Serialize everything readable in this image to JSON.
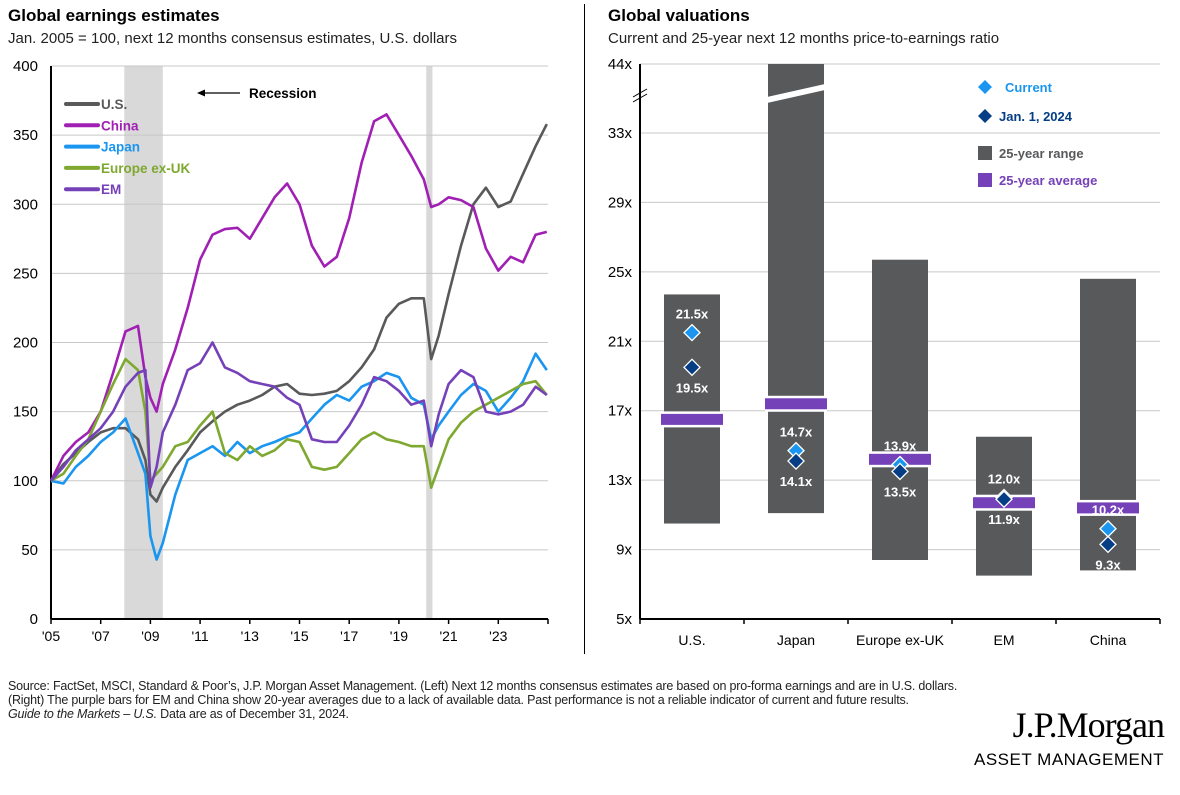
{
  "left": {
    "title": "Global earnings estimates",
    "subtitle": "Jan. 2005 = 100, next 12 months consensus estimates, U.S. dollars",
    "recession_label": "Recession"
  },
  "right": {
    "title": "Global valuations",
    "subtitle": "Current and 25-year next 12 months price-to-earnings ratio"
  },
  "footer": {
    "source": "Source: FactSet, MSCI, Standard & Poor’s, J.P. Morgan Asset Management. (Left) Next 12 months consensus estimates are based on pro-forma earnings and are in U.S. dollars. (Right) The purple bars for EM and China show 20-year averages due to a lack of available data. Past performance is not a reliable indicator of current and future results.",
    "guide_italic": "Guide to the Markets – U.S.",
    "guide_rest": " Data are as of December 31, 2024."
  },
  "logo": {
    "name": "J.P.Morgan",
    "tagline": "ASSET MANAGEMENT"
  },
  "chart_data": [
    {
      "type": "line",
      "title": "Global earnings estimates",
      "subtitle": "Jan. 2005 = 100, next 12 months consensus estimates, U.S. dollars",
      "xlabel": "",
      "ylabel": "",
      "ylim": [
        0,
        400
      ],
      "xlim": [
        2005,
        2025
      ],
      "yticks": [
        0,
        50,
        100,
        150,
        200,
        250,
        300,
        350,
        400
      ],
      "xtick_labels": [
        "'05",
        "'07",
        "'09",
        "'11",
        "'13",
        "'15",
        "'17",
        "'19",
        "'21",
        "'23"
      ],
      "xtick_years": [
        2005,
        2007,
        2009,
        2011,
        2013,
        2015,
        2017,
        2019,
        2021,
        2023
      ],
      "grid": true,
      "legend_position": "top-left",
      "recessions": [
        [
          2007.95,
          2009.5
        ],
        [
          2020.1,
          2020.35
        ]
      ],
      "x": [
        2005.0,
        2005.5,
        2006.0,
        2006.5,
        2007.0,
        2007.5,
        2008.0,
        2008.5,
        2008.8,
        2009.0,
        2009.25,
        2009.5,
        2010.0,
        2010.5,
        2011.0,
        2011.5,
        2012.0,
        2012.5,
        2013.0,
        2013.5,
        2014.0,
        2014.5,
        2015.0,
        2015.5,
        2016.0,
        2016.5,
        2017.0,
        2017.5,
        2018.0,
        2018.5,
        2019.0,
        2019.5,
        2020.0,
        2020.3,
        2020.6,
        2021.0,
        2021.5,
        2022.0,
        2022.5,
        2023.0,
        2023.5,
        2024.0,
        2024.5,
        2024.95
      ],
      "series": [
        {
          "name": "U.S.",
          "color": "#58595b",
          "values": [
            100,
            112,
            120,
            128,
            135,
            138,
            138,
            130,
            115,
            90,
            85,
            95,
            110,
            122,
            135,
            143,
            150,
            155,
            158,
            162,
            168,
            170,
            163,
            162,
            163,
            165,
            172,
            182,
            195,
            218,
            228,
            232,
            232,
            188,
            205,
            235,
            270,
            300,
            312,
            298,
            302,
            322,
            342,
            358
          ]
        },
        {
          "name": "China",
          "color": "#a020b4",
          "values": [
            100,
            118,
            128,
            135,
            150,
            178,
            208,
            212,
            175,
            160,
            150,
            170,
            195,
            225,
            260,
            278,
            282,
            283,
            275,
            290,
            305,
            315,
            300,
            270,
            255,
            262,
            290,
            330,
            360,
            365,
            350,
            335,
            318,
            298,
            300,
            305,
            303,
            298,
            268,
            252,
            262,
            258,
            278,
            280
          ]
        },
        {
          "name": "Japan",
          "color": "#1a96f0",
          "values": [
            100,
            98,
            110,
            118,
            128,
            135,
            145,
            120,
            105,
            60,
            43,
            55,
            90,
            115,
            120,
            125,
            118,
            128,
            120,
            125,
            128,
            132,
            135,
            145,
            155,
            162,
            158,
            168,
            172,
            178,
            175,
            160,
            155,
            130,
            140,
            150,
            162,
            170,
            165,
            150,
            160,
            172,
            192,
            180
          ]
        },
        {
          "name": "Europe ex-UK",
          "color": "#7ea82f",
          "values": [
            100,
            105,
            118,
            130,
            150,
            170,
            188,
            180,
            150,
            100,
            105,
            110,
            125,
            128,
            140,
            150,
            120,
            115,
            125,
            118,
            122,
            130,
            128,
            110,
            108,
            110,
            120,
            130,
            135,
            130,
            128,
            125,
            125,
            95,
            110,
            130,
            142,
            150,
            155,
            160,
            165,
            170,
            172,
            162
          ]
        },
        {
          "name": "EM",
          "color": "#7541b9",
          "values": [
            100,
            110,
            122,
            130,
            138,
            150,
            168,
            178,
            180,
            95,
            110,
            135,
            155,
            180,
            185,
            200,
            182,
            178,
            172,
            170,
            168,
            160,
            155,
            130,
            128,
            128,
            140,
            155,
            175,
            172,
            165,
            155,
            158,
            125,
            148,
            170,
            180,
            175,
            150,
            148,
            150,
            155,
            168,
            162
          ]
        }
      ]
    },
    {
      "type": "bar",
      "subtype": "range-with-markers",
      "title": "Global valuations",
      "subtitle": "Current and 25-year next 12 months price-to-earnings ratio",
      "categories": [
        "U.S.",
        "Japan",
        "Europe ex-UK",
        "EM",
        "China"
      ],
      "ytick_labels": [
        "5x",
        "9x",
        "13x",
        "17x",
        "21x",
        "25x",
        "29x",
        "33x",
        "44x"
      ],
      "yticks": [
        5,
        9,
        13,
        17,
        21,
        25,
        29,
        33
      ],
      "ylim": [
        5,
        37
      ],
      "axis_break": {
        "top_label": "44x",
        "note": "axis broken between 33x and 44x"
      },
      "grid": true,
      "legend_position": "top-right",
      "legend": [
        {
          "label": "Current",
          "color": "#1a96f0",
          "marker": "diamond"
        },
        {
          "label": "Jan. 1, 2024",
          "color": "#053e85",
          "marker": "diamond"
        },
        {
          "label": "25-year range",
          "color": "#58595b",
          "marker": "square"
        },
        {
          "label": "25-year average",
          "color": "#7541b9",
          "marker": "square"
        }
      ],
      "series": [
        {
          "name": "25-year range low",
          "values": [
            10.5,
            11.1,
            8.4,
            7.5,
            7.8
          ]
        },
        {
          "name": "25-year range high",
          "values": [
            23.7,
            44.0,
            25.7,
            15.5,
            24.6
          ]
        },
        {
          "name": "25-year average",
          "values": [
            16.5,
            17.4,
            14.2,
            11.7,
            11.4
          ]
        },
        {
          "name": "Current",
          "values": [
            21.5,
            14.7,
            13.9,
            12.0,
            10.2
          ]
        },
        {
          "name": "Jan. 1, 2024",
          "values": [
            19.5,
            14.1,
            13.5,
            11.9,
            9.3
          ]
        }
      ],
      "data_labels": {
        "current": [
          "21.5x",
          "14.7x",
          "13.9x",
          "12.0x",
          "10.2x"
        ],
        "jan2024": [
          "19.5x",
          "14.1x",
          "13.5x",
          "11.9x",
          "9.3x"
        ]
      },
      "japan_high_broken": true
    }
  ]
}
